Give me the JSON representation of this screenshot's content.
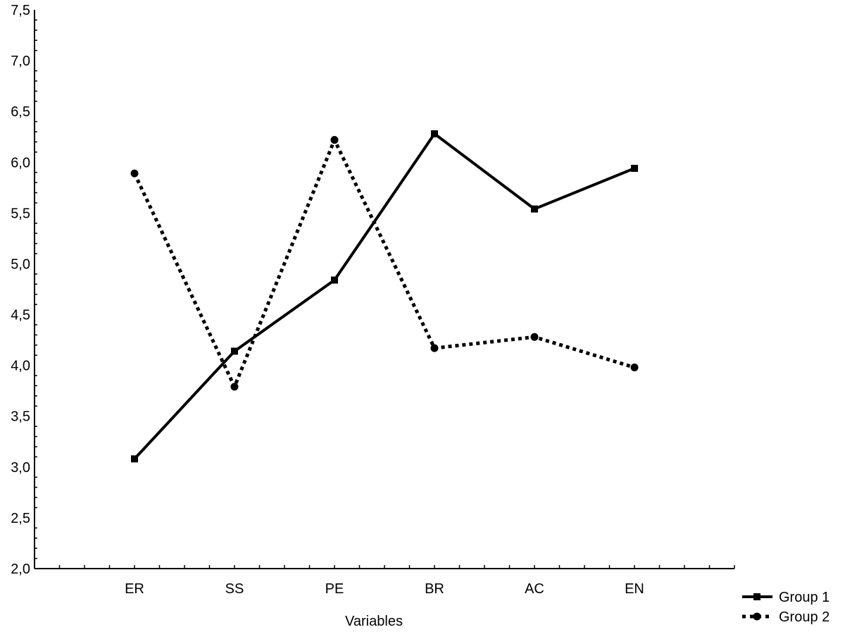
{
  "chart_data": {
    "type": "line",
    "title": "",
    "xlabel": "Variables",
    "ylabel": "",
    "categories": [
      "ER",
      "SS",
      "PE",
      "BR",
      "AC",
      "EN"
    ],
    "ylim": [
      2.0,
      7.5
    ],
    "yticks": [
      "2,0",
      "2,5",
      "3,0",
      "3,5",
      "4,0",
      "4,5",
      "5,0",
      "5,5",
      "6,0",
      "6,5",
      "7,0",
      "7,5"
    ],
    "grid": false,
    "legend_position": "bottom-right",
    "series": [
      {
        "name": "Group 1",
        "style": "solid",
        "marker": "square",
        "color": "#000000",
        "values": [
          3.08,
          4.14,
          4.84,
          6.28,
          5.54,
          5.94
        ]
      },
      {
        "name": "Group 2",
        "style": "dotted",
        "marker": "circle",
        "color": "#000000",
        "values": [
          5.89,
          3.79,
          6.22,
          4.17,
          4.28,
          3.98
        ]
      }
    ]
  }
}
